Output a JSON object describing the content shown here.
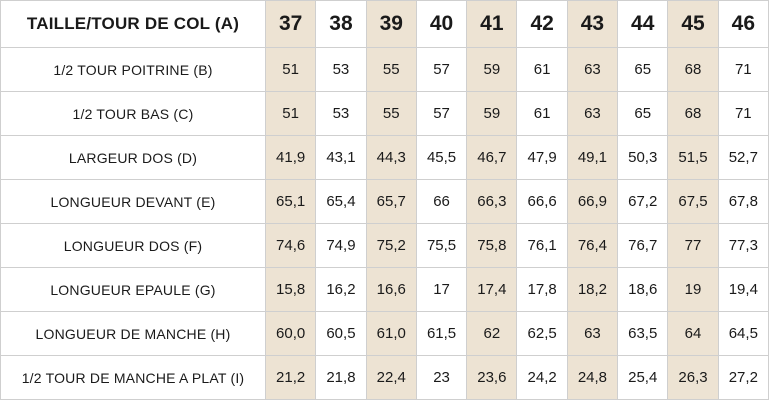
{
  "table": {
    "header_label": "TAILLE/TOUR DE COL (A)",
    "sizes": [
      "37",
      "38",
      "39",
      "40",
      "41",
      "42",
      "43",
      "44",
      "45",
      "46"
    ],
    "highlight_color": "#ede3d3",
    "rows": [
      {
        "label": "1/2 TOUR POITRINE (B)",
        "values": [
          "51",
          "53",
          "55",
          "57",
          "59",
          "61",
          "63",
          "65",
          "68",
          "71"
        ]
      },
      {
        "label": "1/2 TOUR BAS (C)",
        "values": [
          "51",
          "53",
          "55",
          "57",
          "59",
          "61",
          "63",
          "65",
          "68",
          "71"
        ]
      },
      {
        "label": "LARGEUR DOS (D)",
        "values": [
          "41,9",
          "43,1",
          "44,3",
          "45,5",
          "46,7",
          "47,9",
          "49,1",
          "50,3",
          "51,5",
          "52,7"
        ]
      },
      {
        "label": "LONGUEUR DEVANT (E)",
        "values": [
          "65,1",
          "65,4",
          "65,7",
          "66",
          "66,3",
          "66,6",
          "66,9",
          "67,2",
          "67,5",
          "67,8"
        ]
      },
      {
        "label": "LONGUEUR DOS (F)",
        "values": [
          "74,6",
          "74,9",
          "75,2",
          "75,5",
          "75,8",
          "76,1",
          "76,4",
          "76,7",
          "77",
          "77,3"
        ]
      },
      {
        "label": "LONGUEUR EPAULE (G)",
        "values": [
          "15,8",
          "16,2",
          "16,6",
          "17",
          "17,4",
          "17,8",
          "18,2",
          "18,6",
          "19",
          "19,4"
        ]
      },
      {
        "label": "LONGUEUR DE MANCHE (H)",
        "values": [
          "60,0",
          "60,5",
          "61,0",
          "61,5",
          "62",
          "62,5",
          "63",
          "63,5",
          "64",
          "64,5"
        ]
      },
      {
        "label": "1/2 TOUR DE MANCHE A PLAT (I)",
        "values": [
          "21,2",
          "21,8",
          "22,4",
          "23",
          "23,6",
          "24,2",
          "24,8",
          "25,4",
          "26,3",
          "27,2"
        ]
      }
    ]
  }
}
